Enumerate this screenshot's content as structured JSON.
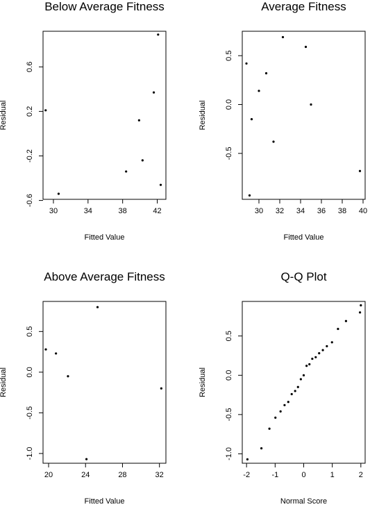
{
  "chart_data": [
    {
      "type": "scatter",
      "title": "Below Average Fitness",
      "xlabel": "Fitted Value",
      "ylabel": "Residual",
      "xlim": [
        28.8,
        43.0
      ],
      "ylim": [
        -0.59,
        0.92
      ],
      "xticks": [
        30,
        34,
        38,
        42
      ],
      "yticks": [
        -0.6,
        -0.2,
        0.2,
        0.6
      ],
      "ytick_labels": [
        "-0.6",
        "-0.2",
        "0.2",
        "0.6"
      ],
      "points": [
        {
          "x": 29.1,
          "y": 0.21
        },
        {
          "x": 30.6,
          "y": -0.54
        },
        {
          "x": 38.4,
          "y": -0.34
        },
        {
          "x": 39.9,
          "y": 0.12
        },
        {
          "x": 40.3,
          "y": -0.24
        },
        {
          "x": 41.6,
          "y": 0.37
        },
        {
          "x": 42.1,
          "y": 0.89
        },
        {
          "x": 42.4,
          "y": -0.46
        }
      ]
    },
    {
      "type": "scatter",
      "title": "Average Fitness",
      "xlabel": "Fitted Value",
      "ylabel": "Residual",
      "xlim": [
        28.4,
        40.2
      ],
      "ylim": [
        -0.97,
        0.75
      ],
      "xticks": [
        30,
        32,
        34,
        36,
        38,
        40
      ],
      "yticks": [
        -0.5,
        0.0,
        0.5
      ],
      "ytick_labels": [
        "-0.5",
        "0.0",
        "0.5"
      ],
      "points": [
        {
          "x": 28.8,
          "y": 0.42
        },
        {
          "x": 29.1,
          "y": -0.93
        },
        {
          "x": 29.3,
          "y": -0.15
        },
        {
          "x": 30.0,
          "y": 0.14
        },
        {
          "x": 30.7,
          "y": 0.32
        },
        {
          "x": 31.4,
          "y": -0.38
        },
        {
          "x": 32.3,
          "y": 0.69
        },
        {
          "x": 34.5,
          "y": 0.59
        },
        {
          "x": 35.0,
          "y": 0.0
        },
        {
          "x": 39.7,
          "y": -0.68
        }
      ]
    },
    {
      "type": "scatter",
      "title": "Above Average Fitness",
      "xlabel": "Fitted Value",
      "ylabel": "Residual",
      "xlim": [
        19.4,
        32.7
      ],
      "ylim": [
        -1.12,
        0.87
      ],
      "xticks": [
        20,
        24,
        28,
        32
      ],
      "yticks": [
        -1.0,
        -0.5,
        0.0,
        0.5
      ],
      "ytick_labels": [
        "-1.0",
        "-0.5",
        "0.0",
        "0.5"
      ],
      "points": [
        {
          "x": 19.7,
          "y": 0.28
        },
        {
          "x": 20.8,
          "y": 0.23
        },
        {
          "x": 22.1,
          "y": -0.05
        },
        {
          "x": 24.1,
          "y": -1.07
        },
        {
          "x": 25.3,
          "y": 0.8
        },
        {
          "x": 32.2,
          "y": -0.2
        }
      ]
    },
    {
      "type": "scatter",
      "title": "Q-Q Plot",
      "xlabel": "Normal Score",
      "ylabel": "Residual",
      "xlim": [
        -2.15,
        2.15
      ],
      "ylim": [
        -1.12,
        0.94
      ],
      "xticks": [
        -2,
        -1,
        0,
        1,
        2
      ],
      "yticks": [
        -1.0,
        -0.5,
        0.0,
        0.5
      ],
      "ytick_labels": [
        "-1.0",
        "-0.5",
        "0.0",
        "0.5"
      ],
      "points": [
        {
          "x": -1.97,
          "y": -1.07
        },
        {
          "x": -1.48,
          "y": -0.93
        },
        {
          "x": -1.2,
          "y": -0.68
        },
        {
          "x": -0.99,
          "y": -0.54
        },
        {
          "x": -0.81,
          "y": -0.46
        },
        {
          "x": -0.67,
          "y": -0.38
        },
        {
          "x": -0.54,
          "y": -0.34
        },
        {
          "x": -0.42,
          "y": -0.24
        },
        {
          "x": -0.3,
          "y": -0.2
        },
        {
          "x": -0.2,
          "y": -0.15
        },
        {
          "x": -0.1,
          "y": -0.05
        },
        {
          "x": 0.0,
          "y": 0.0
        },
        {
          "x": 0.1,
          "y": 0.12
        },
        {
          "x": 0.2,
          "y": 0.14
        },
        {
          "x": 0.3,
          "y": 0.21
        },
        {
          "x": 0.42,
          "y": 0.23
        },
        {
          "x": 0.54,
          "y": 0.28
        },
        {
          "x": 0.67,
          "y": 0.32
        },
        {
          "x": 0.81,
          "y": 0.37
        },
        {
          "x": 0.99,
          "y": 0.42
        },
        {
          "x": 1.2,
          "y": 0.59
        },
        {
          "x": 1.48,
          "y": 0.69
        },
        {
          "x": 1.97,
          "y": 0.8
        },
        {
          "x": 2.0,
          "y": 0.89
        }
      ]
    }
  ]
}
